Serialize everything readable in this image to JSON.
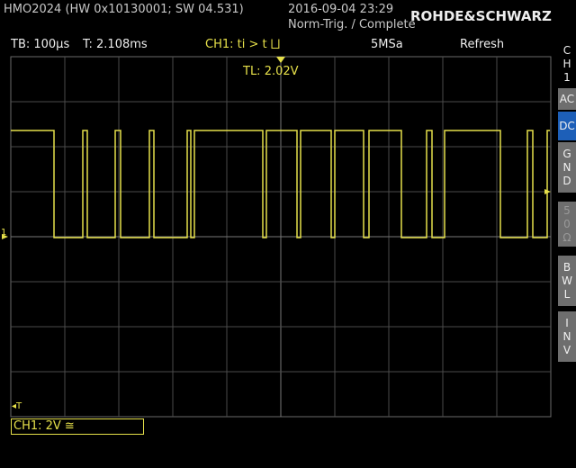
{
  "header": {
    "device": "HMO2024 (HW 0x10130001; SW 04.531)",
    "datetime": "2016-09-04 23:29",
    "trigger_state": "Norm-Trig. / Complete",
    "brand": "ROHDE&SCHWARZ"
  },
  "status": {
    "timebase": "TB: 100µs",
    "trigger_time": "T: 2.108ms",
    "trigger": "CH1: ti > t ⨆",
    "sample_rate": "5MSa",
    "mode": "Refresh",
    "trigger_level": "TL: 2.02V"
  },
  "markers": {
    "trigger": "◂T",
    "channel": "1"
  },
  "footer": {
    "channel": "CH1: 2V ≅"
  },
  "side_menu": {
    "title": "CH1",
    "items": [
      "AC",
      "DC",
      "GND",
      "50Ω",
      "BWL",
      "INV"
    ]
  }
}
